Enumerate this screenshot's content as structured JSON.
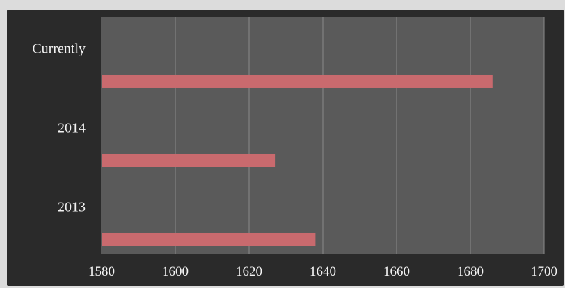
{
  "chart_data": {
    "type": "bar",
    "orientation": "horizontal",
    "title": "",
    "xlabel": "",
    "ylabel": "",
    "categories": [
      "2013",
      "2014",
      "Currently"
    ],
    "values": [
      1638,
      1627,
      1686
    ],
    "xlim": [
      1580,
      1700
    ],
    "x_ticks": [
      "1580",
      "1600",
      "1620",
      "1640",
      "1660",
      "1680",
      "1700"
    ],
    "grid": true,
    "legend": "none",
    "colors": {
      "bar": "#c96a6e",
      "plot_background": "#5a5a5a",
      "frame_background": "#2a2a2a",
      "gridline": "#8a8a8a",
      "text": "#f2f2f2"
    }
  }
}
